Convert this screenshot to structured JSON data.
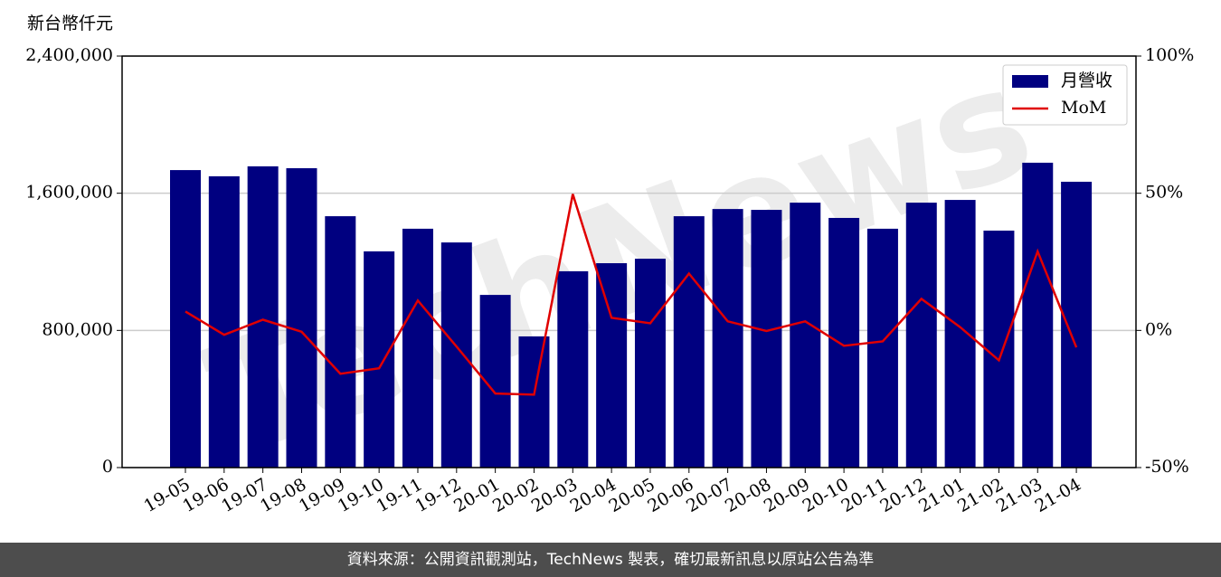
{
  "chart_data": {
    "type": "bar_line",
    "y_label": "新台幣仟元",
    "watermark": "TechNews",
    "categories": [
      "19-05",
      "19-06",
      "19-07",
      "19-08",
      "19-09",
      "19-10",
      "19-11",
      "19-12",
      "20-01",
      "20-02",
      "20-03",
      "20-04",
      "20-05",
      "20-06",
      "20-07",
      "20-08",
      "20-09",
      "20-10",
      "20-11",
      "20-12",
      "21-01",
      "21-02",
      "21-03",
      "21-04"
    ],
    "series": [
      {
        "name": "月營收",
        "type": "bar",
        "color": "#000080",
        "values": [
          1735000,
          1699000,
          1757000,
          1746000,
          1466000,
          1261000,
          1393000,
          1313000,
          1007000,
          765000,
          1145000,
          1192000,
          1218000,
          1466000,
          1508000,
          1503000,
          1545000,
          1456000,
          1393000,
          1545000,
          1561000,
          1382000,
          1778000,
          1667000
        ]
      },
      {
        "name": "MoM",
        "type": "line",
        "axis": "y2",
        "color": "#e00000",
        "values": [
          6.9,
          -1.6,
          3.9,
          -0.5,
          -15.8,
          -13.8,
          10.9,
          -5.9,
          -23.0,
          -23.4,
          49.7,
          4.6,
          2.6,
          20.7,
          3.3,
          -0.2,
          3.3,
          -5.6,
          -4.0,
          11.5,
          1.2,
          -10.9,
          28.8,
          -6.2
        ]
      }
    ],
    "ylim": [
      0,
      2400000
    ],
    "yticks": [
      0,
      {
        "value": 800000,
        "label": "800,000"
      },
      {
        "value": 1600000,
        "label": "1,600,000"
      },
      {
        "value": 2400000,
        "label": "2,400,000"
      }
    ],
    "y2lim": [
      -50,
      100
    ],
    "y2ticks": [
      {
        "value": -50,
        "label": "-50%"
      },
      {
        "value": 0,
        "label": "0%"
      },
      {
        "value": 50,
        "label": "50%"
      },
      {
        "value": 100,
        "label": "100%"
      }
    ],
    "grid": true,
    "legend": "upper right"
  },
  "footer": "資料來源：公開資訊觀測站，TechNews 製表，確切最新訊息以原站公告為準"
}
